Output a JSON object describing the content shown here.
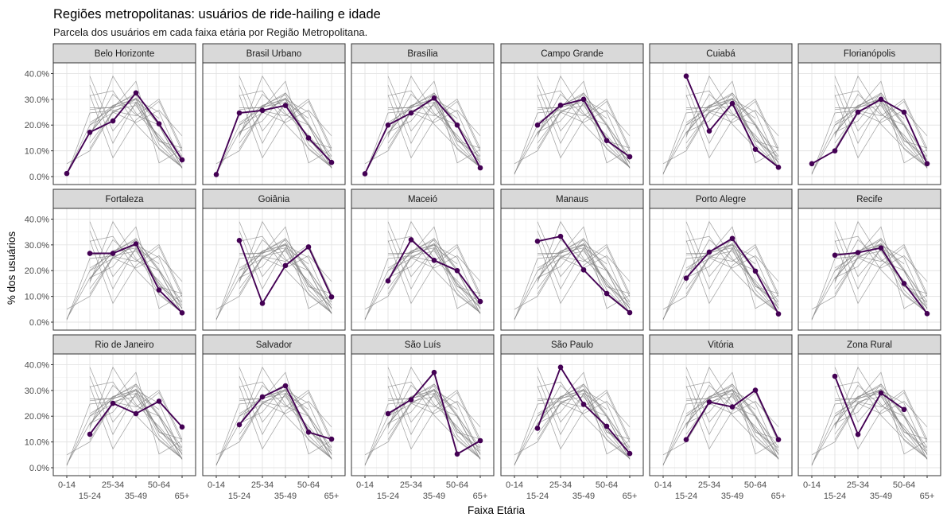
{
  "chart_data": {
    "type": "line",
    "title": "Regiões metropolitanas: usuários de ride-hailing e idade",
    "subtitle": "Parcela dos usuários em cada faixa etária por Região Metropolitana.",
    "xlabel": "Faixa Etária",
    "ylabel": "% dos usuários",
    "categories": [
      "0-14",
      "15-24",
      "25-34",
      "35-49",
      "50-64",
      "65+"
    ],
    "yticks": [
      "0.0%",
      "10.0%",
      "20.0%",
      "30.0%",
      "40.0%"
    ],
    "ylim": [
      0,
      42
    ],
    "grid": true,
    "highlight_color": "#440154",
    "background_line_color": "#7f7f7f",
    "strip_fill": "#d9d9d9",
    "panels": [
      {
        "name": "Belo Horizonte",
        "values": [
          1.2,
          17.2,
          21.6,
          32.5,
          20.5,
          6.5
        ]
      },
      {
        "name": "Brasil Urbano",
        "values": [
          0.8,
          24.7,
          25.7,
          27.6,
          15.0,
          5.5
        ]
      },
      {
        "name": "Brasília",
        "values": [
          1.1,
          20.0,
          24.7,
          30.5,
          20.0,
          3.4
        ]
      },
      {
        "name": "Campo Grande",
        "values": [
          null,
          20.0,
          27.7,
          30.0,
          14.0,
          7.7
        ]
      },
      {
        "name": "Cuiabá",
        "values": [
          null,
          39.0,
          17.7,
          28.4,
          10.6,
          3.6
        ]
      },
      {
        "name": "Florianópolis",
        "values": [
          5.0,
          10.0,
          25.0,
          30.0,
          25.0,
          5.0
        ]
      },
      {
        "name": "Fortaleza",
        "values": [
          null,
          26.7,
          26.7,
          30.4,
          12.5,
          3.6
        ]
      },
      {
        "name": "Goiânia",
        "values": [
          null,
          31.7,
          7.3,
          22.0,
          29.2,
          9.8
        ]
      },
      {
        "name": "Maceió",
        "values": [
          null,
          16.0,
          32.0,
          24.0,
          20.0,
          8.0
        ]
      },
      {
        "name": "Manaus",
        "values": [
          null,
          31.4,
          33.3,
          20.3,
          11.1,
          3.7
        ]
      },
      {
        "name": "Porto Alegre",
        "values": [
          null,
          17.1,
          27.2,
          32.5,
          19.8,
          3.2
        ]
      },
      {
        "name": "Recife",
        "values": [
          null,
          26.0,
          27.0,
          28.8,
          15.0,
          3.3
        ]
      },
      {
        "name": "Rio de Janeiro",
        "values": [
          null,
          13.0,
          25.0,
          21.0,
          25.8,
          15.8
        ]
      },
      {
        "name": "Salvador",
        "values": [
          null,
          16.7,
          27.5,
          31.8,
          13.8,
          11.1
        ]
      },
      {
        "name": "São Luís",
        "values": [
          null,
          21.0,
          26.4,
          37.0,
          5.3,
          10.5
        ]
      },
      {
        "name": "São Paulo",
        "values": [
          null,
          15.3,
          39.0,
          24.6,
          16.1,
          5.5
        ]
      },
      {
        "name": "Vitória",
        "values": [
          null,
          10.9,
          25.5,
          23.6,
          30.1,
          10.9
        ]
      },
      {
        "name": "Zona Rural",
        "values": [
          null,
          35.5,
          12.9,
          29.0,
          22.6,
          null
        ]
      }
    ]
  }
}
